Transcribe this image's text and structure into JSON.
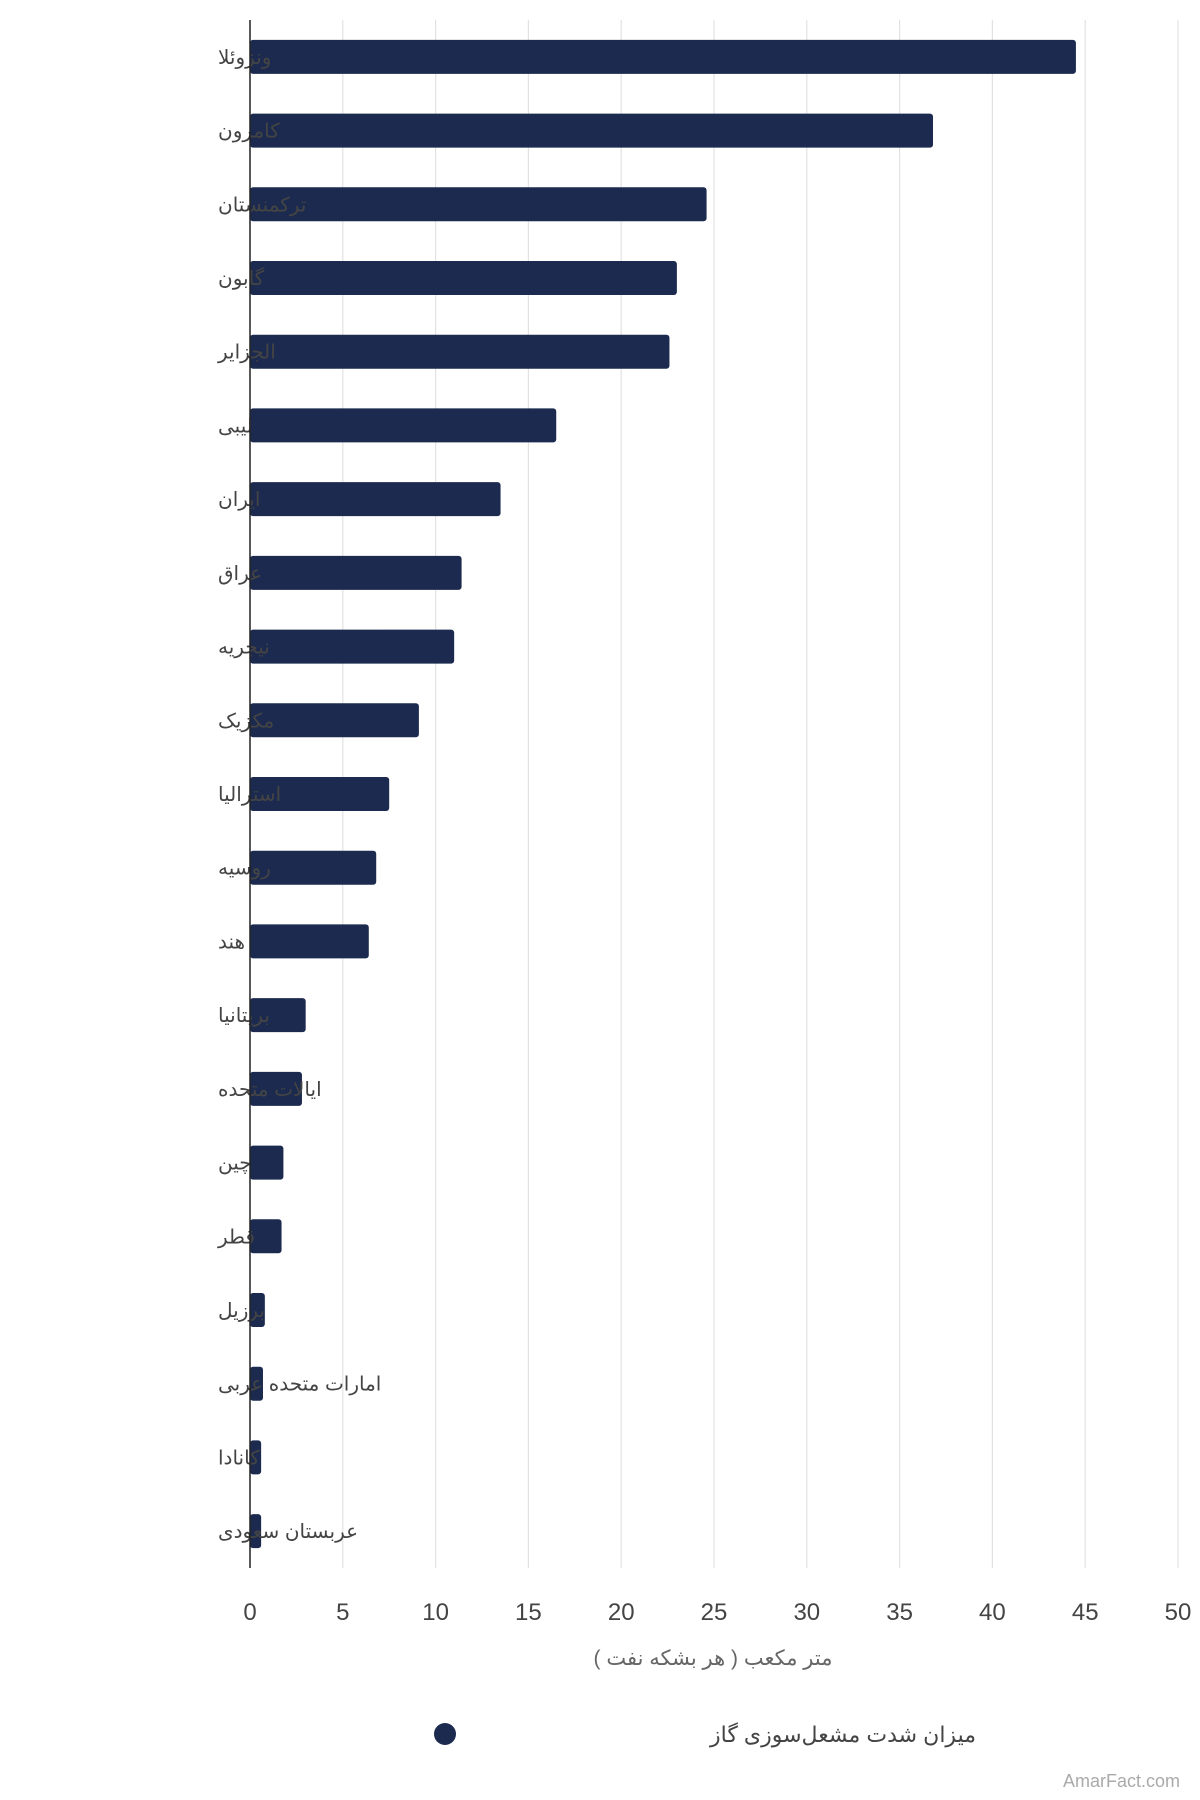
{
  "chart_data": {
    "type": "bar",
    "orientation": "horizontal",
    "categories": [
      "ونزوئلا",
      "کامرون",
      "ترکمنستان",
      "گابون",
      "الجزایر",
      "لیبی",
      "ایران",
      "عراق",
      "نیجریه",
      "مکزیک",
      "استرالیا",
      "روسیه",
      "هند",
      "بریتانیا",
      "ایالات متحده",
      "چین",
      "قطر",
      "برزیل",
      "امارات متحده عربی",
      "کانادا",
      "عربستان سعودی"
    ],
    "series": [
      {
        "name": "میزان شدت مشعل‌سوزی گاز",
        "values": [
          44.5,
          36.8,
          24.6,
          23.0,
          22.6,
          16.5,
          13.5,
          11.4,
          11.0,
          9.1,
          7.5,
          6.8,
          6.4,
          3.0,
          2.8,
          1.8,
          1.7,
          0.8,
          0.7,
          0.6,
          0.6
        ]
      }
    ],
    "xlim": [
      0,
      50
    ],
    "xticks": [
      0,
      5,
      10,
      15,
      20,
      25,
      30,
      35,
      40,
      45,
      50
    ],
    "xlabel": "متر مکعب ( هر بشکه نفت )",
    "ylabel": "",
    "title": "",
    "grid": true,
    "legend": "bottom-center"
  },
  "colors": {
    "bar": "#1b2a4e",
    "grid": "#e2e2e2",
    "axis": "#222222"
  },
  "watermark": "AmarFact.com"
}
